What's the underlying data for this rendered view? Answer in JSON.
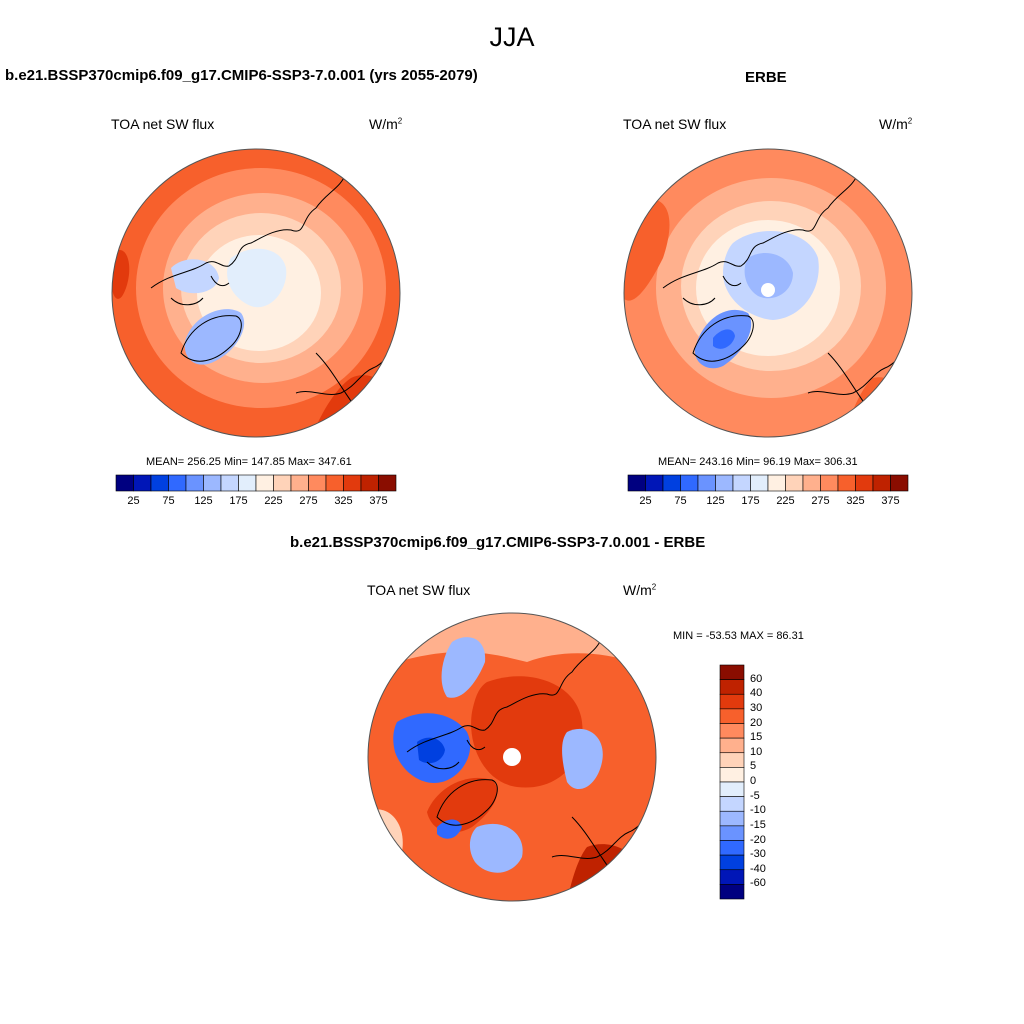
{
  "title": "JJA",
  "colors": {
    "abs_scale": [
      "#000080",
      "#0016b7",
      "#0040e0",
      "#3069ff",
      "#6a93ff",
      "#9cb8ff",
      "#c4d6ff",
      "#e2eefc",
      "#fff0e2",
      "#ffd3b9",
      "#ffb08d",
      "#ff8a5e",
      "#f7602c",
      "#e23a0d",
      "#bf2200",
      "#8a0d00"
    ],
    "diff_scale": [
      "#000080",
      "#0016b7",
      "#0040e0",
      "#3069ff",
      "#6a93ff",
      "#9cb8ff",
      "#c4d6ff",
      "#e2eefc",
      "#fff0e2",
      "#ffd3b9",
      "#ffb08d",
      "#ff8a5e",
      "#f7602c",
      "#e23a0d",
      "#bf2200",
      "#8a0d00"
    ]
  },
  "panels": [
    {
      "title": "b.e21.BSSP370cmip6.f09_g17.CMIP6-SSP3-7.0.001 (yrs 2055-2079)",
      "variable": "TOA net SW flux",
      "units_base": "W/m",
      "units_exp": "2",
      "stats": "MEAN= 256.25  Min= 147.85  Max= 347.61",
      "colorbar_labels": [
        "25",
        "75",
        "125",
        "175",
        "225",
        "275",
        "325",
        "375"
      ]
    },
    {
      "title": "ERBE",
      "variable": "TOA net SW flux",
      "units_base": "W/m",
      "units_exp": "2",
      "stats": "MEAN= 243.16  Min=  96.19  Max= 306.31",
      "colorbar_labels": [
        "25",
        "75",
        "125",
        "175",
        "225",
        "275",
        "325",
        "375"
      ]
    },
    {
      "title": "b.e21.BSSP370cmip6.f09_g17.CMIP6-SSP3-7.0.001 - ERBE",
      "variable": "TOA net SW flux",
      "units_base": "W/m",
      "units_exp": "2",
      "stats": "MIN = -53.53 MAX =  86.31",
      "colorbar_labels": [
        "60",
        "40",
        "30",
        "20",
        "15",
        "10",
        "5",
        "0",
        "-5",
        "-10",
        "-15",
        "-20",
        "-30",
        "-40",
        "-60"
      ]
    }
  ]
}
